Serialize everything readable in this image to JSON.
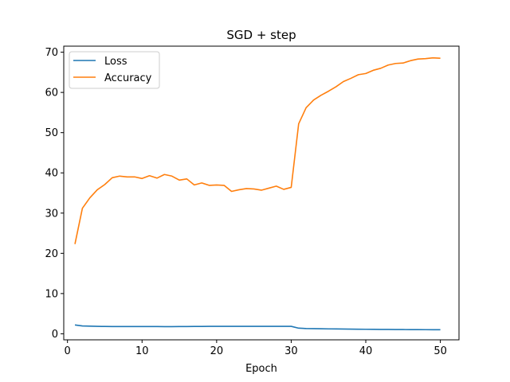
{
  "chart_data": {
    "type": "line",
    "title": "SGD + step",
    "xlabel": "Epoch",
    "ylabel": "",
    "xlim": [
      -0.5,
      52.5
    ],
    "ylim": [
      -1.5,
      71.5
    ],
    "xticks": [
      0,
      10,
      20,
      30,
      40,
      50
    ],
    "yticks": [
      0,
      10,
      20,
      30,
      40,
      50,
      60,
      70
    ],
    "grid": false,
    "legend_position": "upper left",
    "x": [
      1,
      2,
      3,
      4,
      5,
      6,
      7,
      8,
      9,
      10,
      11,
      12,
      13,
      14,
      15,
      16,
      17,
      18,
      19,
      20,
      21,
      22,
      23,
      24,
      25,
      26,
      27,
      28,
      29,
      30,
      31,
      32,
      33,
      34,
      35,
      36,
      37,
      38,
      39,
      40,
      41,
      42,
      43,
      44,
      45,
      46,
      47,
      48,
      49,
      50
    ],
    "series": [
      {
        "name": "Loss",
        "color": "#1f77b4",
        "values": [
          2.2,
          1.95,
          1.9,
          1.85,
          1.82,
          1.8,
          1.8,
          1.8,
          1.8,
          1.8,
          1.8,
          1.8,
          1.78,
          1.78,
          1.8,
          1.8,
          1.82,
          1.82,
          1.85,
          1.85,
          1.85,
          1.85,
          1.85,
          1.85,
          1.85,
          1.85,
          1.85,
          1.85,
          1.85,
          1.85,
          1.4,
          1.3,
          1.28,
          1.25,
          1.22,
          1.2,
          1.18,
          1.16,
          1.14,
          1.12,
          1.1,
          1.09,
          1.08,
          1.06,
          1.05,
          1.04,
          1.03,
          1.02,
          1.01,
          1.0
        ]
      },
      {
        "name": "Accuracy",
        "color": "#ff7f0e",
        "values": [
          22.3,
          31.2,
          33.8,
          35.8,
          37.1,
          38.8,
          39.2,
          39.0,
          39.0,
          38.6,
          39.3,
          38.7,
          39.6,
          39.2,
          38.2,
          38.5,
          37.0,
          37.5,
          36.9,
          37.0,
          36.9,
          35.4,
          35.8,
          36.1,
          36.0,
          35.7,
          36.2,
          36.7,
          35.9,
          36.4,
          52.2,
          56.2,
          58.1,
          59.3,
          60.3,
          61.4,
          62.7,
          63.5,
          64.4,
          64.7,
          65.5,
          66.0,
          66.8,
          67.2,
          67.3,
          67.9,
          68.3,
          68.4,
          68.6,
          68.5
        ]
      }
    ]
  }
}
